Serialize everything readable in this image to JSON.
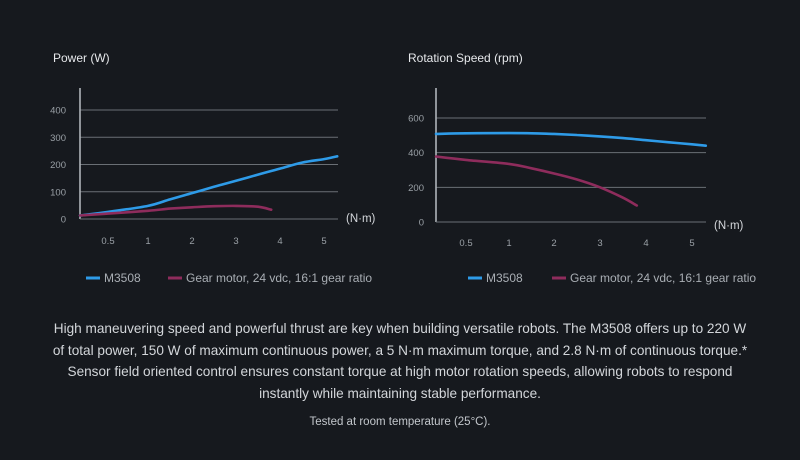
{
  "colors": {
    "background": "#16191e",
    "m3508": "#2e9be8",
    "gear": "#8e2c5c",
    "grid": "#6a6f75",
    "axis": "#b0b4b9"
  },
  "chart_data": [
    {
      "type": "line",
      "title": "Power (W)",
      "xlabel": "(N·m)",
      "ylabel": "Power (W)",
      "xlim": [
        0,
        5.3
      ],
      "ylim": [
        0,
        420
      ],
      "x_ticks": [
        0.5,
        1,
        2,
        3,
        4,
        5
      ],
      "x_tick_labels": [
        "0.5",
        "1",
        "2",
        "3",
        "4",
        "5"
      ],
      "y_ticks": [
        0,
        100,
        200,
        300,
        400
      ],
      "y_tick_labels": [
        "0",
        "100",
        "200",
        "300",
        "400"
      ],
      "series": [
        {
          "name": "M3508",
          "color": "#2e9be8",
          "x": [
            0,
            0.5,
            1,
            1.5,
            2,
            2.5,
            3,
            3.5,
            4,
            4.5,
            5,
            5.3
          ],
          "y": [
            13,
            26,
            48,
            72,
            95,
            118,
            140,
            163,
            185,
            207,
            220,
            230
          ]
        },
        {
          "name": "Gear motor, 24 vdc, 16:1 gear ratio",
          "color": "#8e2c5c",
          "x": [
            0,
            0.5,
            1,
            1.5,
            2,
            2.5,
            3,
            3.5,
            3.8
          ],
          "y": [
            13,
            20,
            30,
            38,
            43,
            47,
            48,
            45,
            34
          ]
        }
      ],
      "legend": "bottom"
    },
    {
      "type": "line",
      "title": "Rotation Speed (rpm)",
      "xlabel": "(N·m)",
      "ylabel": "Rotation Speed (rpm)",
      "xlim": [
        0,
        5.3
      ],
      "ylim": [
        0,
        660
      ],
      "x_ticks": [
        0.5,
        1,
        2,
        3,
        4,
        5
      ],
      "x_tick_labels": [
        "0.5",
        "1",
        "2",
        "3",
        "4",
        "5"
      ],
      "y_ticks": [
        0,
        200,
        400,
        600
      ],
      "y_tick_labels": [
        "0",
        "200",
        "400",
        "600"
      ],
      "series": [
        {
          "name": "M3508",
          "color": "#2e9be8",
          "x": [
            0,
            0.5,
            1,
            1.5,
            2,
            2.5,
            3,
            3.5,
            4,
            4.5,
            5,
            5.3
          ],
          "y": [
            508,
            512,
            513,
            512,
            508,
            502,
            494,
            484,
            472,
            460,
            448,
            440
          ]
        },
        {
          "name": "Gear motor, 24 vdc, 16:1 gear ratio",
          "color": "#8e2c5c",
          "x": [
            0,
            0.5,
            1,
            1.5,
            2,
            2.5,
            3,
            3.5,
            3.8
          ],
          "y": [
            378,
            358,
            335,
            310,
            280,
            245,
            200,
            140,
            95
          ]
        }
      ],
      "legend": "bottom"
    }
  ],
  "legend": {
    "m3508": "M3508",
    "gear": "Gear motor, 24 vdc, 16:1 gear ratio"
  },
  "description": "High maneuvering speed and powerful thrust are key when building versatile robots. The M3508 offers up to 220 W of total power, 150 W of maximum continuous power, a 5 N·m maximum torque, and 2.8 N·m of continuous torque.* Sensor field oriented control ensures constant torque at high motor rotation speeds, allowing robots to respond instantly while maintaining stable performance.",
  "footnote": "Tested at room temperature (25°C)."
}
